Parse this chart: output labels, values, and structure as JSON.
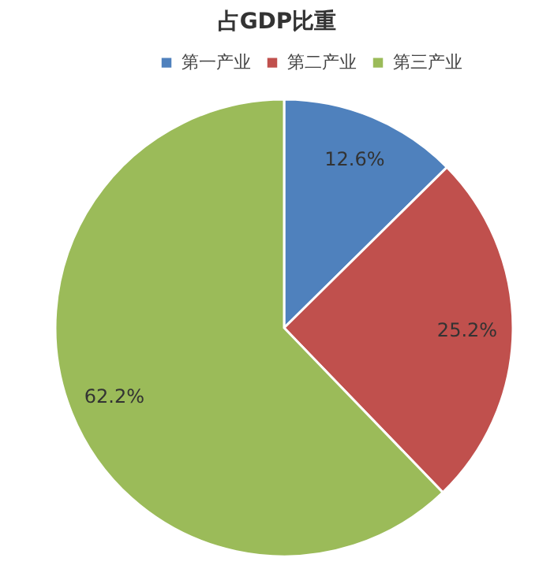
{
  "chart_data": {
    "type": "pie",
    "title": "占GDP比重",
    "categories": [
      "第一产业",
      "第二产业",
      "第三产业"
    ],
    "values": [
      12.6,
      25.2,
      62.2
    ],
    "value_labels": [
      "12.6%",
      "25.2%",
      "62.2%"
    ],
    "colors": [
      "#4f81bd",
      "#c0504d",
      "#9bbb59"
    ],
    "legend": "top"
  }
}
